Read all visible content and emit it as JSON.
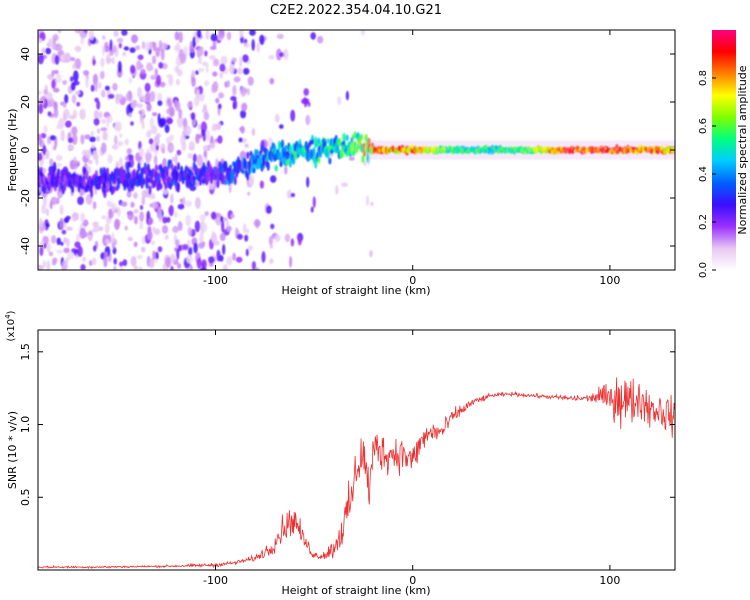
{
  "title": "C2E2.2022.354.04.10.G21",
  "chart_data": [
    {
      "type": "heatmap",
      "xlabel": "Height of straight line (km)",
      "ylabel": "Frequency (Hz)",
      "xlim": [
        -190,
        133
      ],
      "ylim": [
        -50,
        50
      ],
      "xticks": [
        -100,
        0,
        100
      ],
      "yticks": [
        -40,
        -20,
        0,
        20,
        40
      ],
      "colorbar": {
        "label": "Normalized spectral amplitude",
        "range": [
          0.0,
          1.0
        ],
        "ticks": [
          0.0,
          0.2,
          0.4,
          0.6,
          0.8
        ],
        "tick_labels": [
          "0.0",
          "0.2",
          "0.4",
          "0.6",
          "0.8"
        ],
        "colormap": [
          "#ffffff",
          "#e6c6f2",
          "#9b30ff",
          "#3a0dff",
          "#0060ff",
          "#00ccff",
          "#00ff80",
          "#80ff00",
          "#ffff00",
          "#ff8000",
          "#ff0000",
          "#ff0080"
        ]
      },
      "ridge": {
        "x": [
          -190,
          -150,
          -120,
          -100,
          -90,
          -80,
          -70,
          -60,
          -50,
          -40,
          -30,
          -20,
          -10,
          0,
          20,
          40,
          60,
          80,
          100,
          120,
          133
        ],
        "frequency_hz": [
          -13,
          -12,
          -11,
          -10,
          -8,
          -5,
          -2,
          -1,
          0,
          1,
          2,
          0,
          0,
          0,
          0,
          0,
          0,
          0,
          0,
          0,
          0
        ],
        "peak_amplitude": [
          0.25,
          0.28,
          0.3,
          0.3,
          0.35,
          0.4,
          0.45,
          0.5,
          0.5,
          0.5,
          0.55,
          0.9,
          0.85,
          0.85,
          0.6,
          0.55,
          0.65,
          0.95,
          0.95,
          0.9,
          0.8
        ]
      }
    },
    {
      "type": "line",
      "xlabel": "Height of straight line (km)",
      "ylabel": "SNR (10 * v/v)",
      "y_exponent_label": "(x10",
      "y_exponent_power": "4",
      "y_exponent_close": ")",
      "xlim": [
        -190,
        133
      ],
      "ylim": [
        0,
        1.65
      ],
      "xticks": [
        -100,
        0,
        100
      ],
      "yticks": [
        0.5,
        1.0,
        1.5
      ],
      "ytick_labels": [
        "0.5",
        "1.0",
        "1.5"
      ],
      "color": "#ee3030",
      "series": [
        {
          "x": [
            -190,
            -160,
            -130,
            -110,
            -100,
            -90,
            -80,
            -72,
            -65,
            -60,
            -55,
            -50,
            -45,
            -40,
            -35,
            -30,
            -28,
            -25,
            -22,
            -20,
            -18,
            -15,
            -10,
            -5,
            0,
            5,
            10,
            15,
            20,
            25,
            30,
            40,
            50,
            60,
            70,
            80,
            90,
            95,
            100,
            105,
            110,
            115,
            120,
            125,
            133
          ],
          "y": [
            0.02,
            0.02,
            0.025,
            0.03,
            0.035,
            0.05,
            0.08,
            0.15,
            0.3,
            0.35,
            0.2,
            0.1,
            0.1,
            0.15,
            0.3,
            0.55,
            0.75,
            0.8,
            0.55,
            0.8,
            0.85,
            0.8,
            0.8,
            0.8,
            0.75,
            0.9,
            0.95,
            0.95,
            1.05,
            1.1,
            1.15,
            1.2,
            1.21,
            1.2,
            1.19,
            1.18,
            1.18,
            1.2,
            1.17,
            1.2,
            1.15,
            1.18,
            1.12,
            1.1,
            1.05
          ],
          "noise": [
            0.01,
            0.01,
            0.01,
            0.015,
            0.02,
            0.02,
            0.03,
            0.08,
            0.15,
            0.15,
            0.08,
            0.04,
            0.05,
            0.1,
            0.2,
            0.25,
            0.3,
            0.25,
            0.2,
            0.25,
            0.2,
            0.2,
            0.2,
            0.18,
            0.15,
            0.15,
            0.12,
            0.1,
            0.08,
            0.06,
            0.04,
            0.02,
            0.02,
            0.02,
            0.02,
            0.03,
            0.04,
            0.1,
            0.15,
            0.3,
            0.25,
            0.2,
            0.2,
            0.2,
            0.2
          ]
        }
      ]
    }
  ]
}
